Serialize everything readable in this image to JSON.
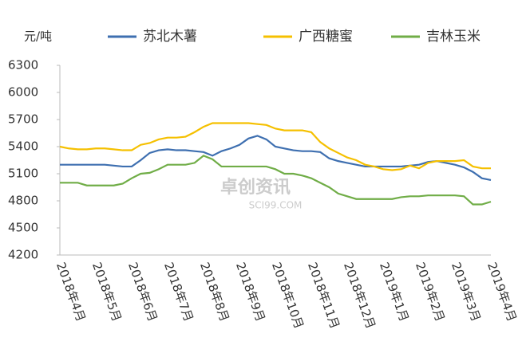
{
  "chart_data": {
    "type": "line",
    "y_unit": "元/吨",
    "watermark": {
      "name": "卓创资讯",
      "site": "SCI99.COM"
    },
    "categories": [
      "2018年4月",
      null,
      null,
      null,
      "2018年5月",
      null,
      null,
      null,
      "2018年6月",
      null,
      null,
      null,
      "2018年7月",
      null,
      null,
      null,
      "2018年8月",
      null,
      null,
      null,
      "2018年9月",
      null,
      null,
      null,
      "2018年10月",
      null,
      null,
      null,
      "2018年11月",
      null,
      null,
      null,
      "2018年12月",
      null,
      null,
      null,
      "2019年1月",
      null,
      null,
      null,
      "2019年2月",
      null,
      null,
      null,
      "2019年3月",
      null,
      null,
      null,
      "2019年4月"
    ],
    "series": [
      {
        "name": "苏北木薯",
        "color": "#3e6fb0",
        "values": [
          5200,
          5200,
          5200,
          5200,
          5200,
          5200,
          5190,
          5180,
          5180,
          5250,
          5330,
          5360,
          5370,
          5360,
          5360,
          5350,
          5340,
          5300,
          5350,
          5380,
          5420,
          5490,
          5520,
          5480,
          5400,
          5380,
          5360,
          5350,
          5350,
          5340,
          5270,
          5240,
          5220,
          5200,
          5180,
          5180,
          5180,
          5180,
          5180,
          5190,
          5200,
          5230,
          5240,
          5220,
          5200,
          5170,
          5120,
          5050,
          5030
        ]
      },
      {
        "name": "广西糖蜜",
        "color": "#f5c000",
        "values": [
          5400,
          5380,
          5370,
          5370,
          5380,
          5380,
          5370,
          5360,
          5360,
          5420,
          5440,
          5480,
          5500,
          5500,
          5510,
          5560,
          5620,
          5660,
          5660,
          5660,
          5660,
          5660,
          5650,
          5640,
          5600,
          5580,
          5580,
          5580,
          5560,
          5450,
          5380,
          5330,
          5280,
          5250,
          5200,
          5180,
          5150,
          5140,
          5150,
          5190,
          5160,
          5220,
          5240,
          5240,
          5240,
          5250,
          5180,
          5160,
          5160
        ]
      },
      {
        "name": "吉林玉米",
        "color": "#70ad47",
        "values": [
          5000,
          5000,
          5000,
          4970,
          4970,
          4970,
          4970,
          4990,
          5050,
          5100,
          5110,
          5150,
          5200,
          5200,
          5200,
          5220,
          5300,
          5260,
          5180,
          5180,
          5180,
          5180,
          5180,
          5180,
          5150,
          5100,
          5100,
          5080,
          5050,
          5000,
          4950,
          4880,
          4850,
          4820,
          4820,
          4820,
          4820,
          4820,
          4840,
          4850,
          4850,
          4860,
          4860,
          4860,
          4860,
          4850,
          4760,
          4760,
          4790
        ]
      }
    ],
    "ylim": [
      4200,
      6300
    ],
    "yticks": [
      4200,
      4500,
      4800,
      5100,
      5400,
      5700,
      6000,
      6300
    ],
    "grid": false
  }
}
